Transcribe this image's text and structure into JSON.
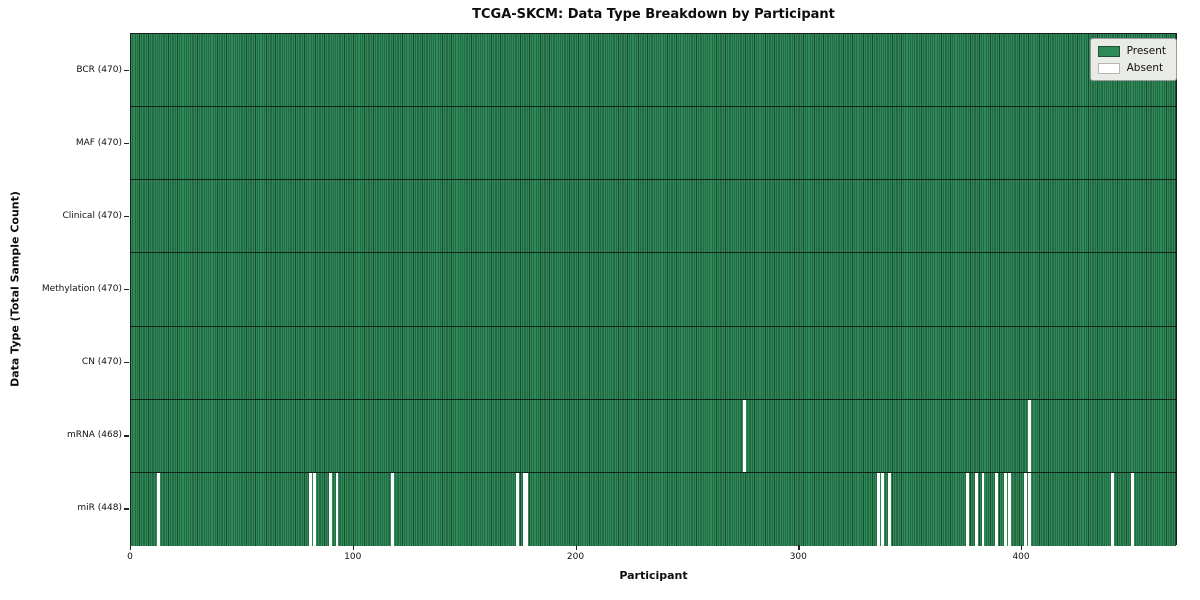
{
  "chart_data": {
    "type": "heatmap",
    "title": "TCGA-SKCM: Data Type Breakdown by Participant",
    "xlabel": "Participant",
    "ylabel": "Data Type (Total Sample Count)",
    "x_range": [
      0,
      470
    ],
    "x_ticks": [
      0,
      100,
      200,
      300,
      400
    ],
    "grid": false,
    "legend_position": "upper right",
    "legend": [
      {
        "label": "Present",
        "color": "#2e8b57"
      },
      {
        "label": "Absent",
        "color": "#ffffff"
      }
    ],
    "colors": {
      "present": "#2e8b57",
      "present_edge": "#1b4a31",
      "absent": "#ffffff",
      "row_border": "#0e2418"
    },
    "rows": [
      {
        "label": "BCR (470)",
        "data_type": "BCR",
        "total": 470,
        "absent": []
      },
      {
        "label": "MAF (470)",
        "data_type": "MAF",
        "total": 470,
        "absent": []
      },
      {
        "label": "Clinical (470)",
        "data_type": "Clinical",
        "total": 470,
        "absent": []
      },
      {
        "label": "Methylation (470)",
        "data_type": "Methylation",
        "total": 470,
        "absent": []
      },
      {
        "label": "CN (470)",
        "data_type": "CN",
        "total": 470,
        "absent": []
      },
      {
        "label": "mRNA (468)",
        "data_type": "mRNA",
        "total": 468,
        "absent": [
          275,
          403
        ]
      },
      {
        "label": "miR (448)",
        "data_type": "miR",
        "total": 448,
        "absent": [
          12,
          80,
          82,
          89,
          92,
          117,
          173,
          176,
          177,
          335,
          337,
          340,
          375,
          379,
          382,
          388,
          392,
          394,
          401,
          403,
          440,
          449
        ]
      }
    ]
  }
}
